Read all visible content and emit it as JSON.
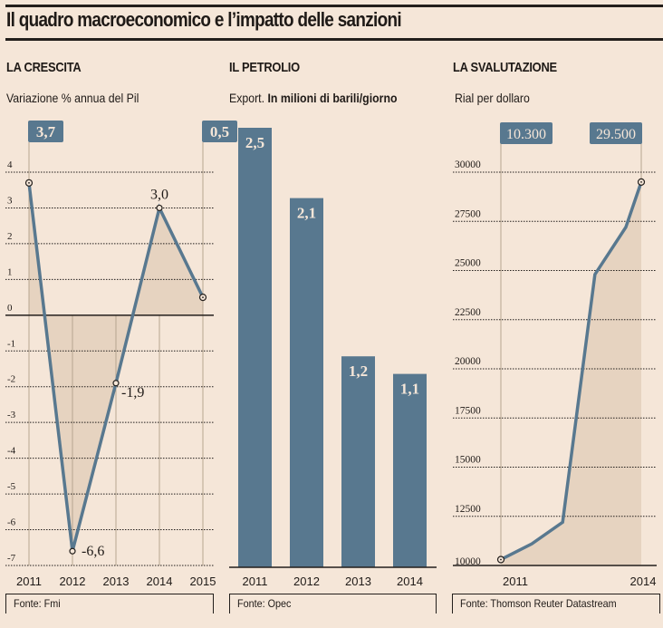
{
  "header": {
    "title": "Il quadro macroeconomico e l’impatto delle sanzioni"
  },
  "colors": {
    "background": "#f5e6d8",
    "line_bar": "#58788f",
    "area_fill": "#e6d3c0",
    "text": "#1f1a17",
    "label_box_text": "#f5e6d8"
  },
  "sections": {
    "crescita": {
      "title": "LA CRESCITA",
      "subtitle": "Variazione % annua del Pil",
      "source": "Fonte: Fmi"
    },
    "petrolio": {
      "title": "IL PETROLIO",
      "subtitle_plain": "Export.",
      "subtitle_bold": "In milioni di barili/giorno",
      "source": "Fonte: Opec"
    },
    "svalutazione": {
      "title": "LA SVALUTAZIONE",
      "subtitle": "Rial per dollaro",
      "source": "Fonte: Thomson Reuter Datastream"
    }
  },
  "chart_data": [
    {
      "type": "line",
      "title": "LA CRESCITA",
      "subtitle": "Variazione % annua del Pil",
      "categories": [
        "2011",
        "2012",
        "2013",
        "2014",
        "2015"
      ],
      "values": [
        3.7,
        -6.6,
        -1.9,
        3.0,
        0.5
      ],
      "data_labels": [
        "3,7",
        "-6,6",
        "-1,9",
        "3,0",
        "0,5"
      ],
      "boxed_labels": [
        {
          "index": 0,
          "text": "3,7"
        },
        {
          "index": 4,
          "text": "0,5"
        }
      ],
      "ylim": [
        -7,
        4
      ],
      "yticks": [
        4,
        3,
        2,
        1,
        0,
        -1,
        -2,
        -3,
        -4,
        -5,
        -6,
        -7
      ],
      "ytick_labels": [
        "4",
        "3",
        "2",
        "1",
        "0",
        "-1",
        "-2",
        "-3",
        "-4",
        "-5",
        "-6",
        "-7"
      ],
      "grid": true,
      "source": "Fonte: Fmi"
    },
    {
      "type": "bar",
      "title": "IL PETROLIO",
      "subtitle": "Export. In milioni di barili/giorno",
      "categories": [
        "2011",
        "2012",
        "2013",
        "2014"
      ],
      "values": [
        2.5,
        2.1,
        1.2,
        1.1
      ],
      "data_labels": [
        "2,5",
        "2,1",
        "1,2",
        "1,1"
      ],
      "ylim": [
        0,
        2.5
      ],
      "grid": false,
      "source": "Fonte: Opec"
    },
    {
      "type": "area",
      "title": "LA SVALUTAZIONE",
      "subtitle": "Rial per dollaro",
      "x": [
        0,
        0.22,
        0.44,
        0.67,
        0.89,
        1.0
      ],
      "x_range_labels": [
        "2011",
        "2014"
      ],
      "values": [
        10300,
        11100,
        12200,
        24800,
        27200,
        29500
      ],
      "boxed_labels": [
        {
          "index": 0,
          "text": "10.300"
        },
        {
          "index": 5,
          "text": "29.500"
        }
      ],
      "ylim": [
        10000,
        30000
      ],
      "yticks": [
        30000,
        27500,
        25000,
        22500,
        20000,
        17500,
        15000,
        12500,
        10000
      ],
      "ytick_labels": [
        "30000",
        "27500",
        "25000",
        "22500",
        "20000",
        "17500",
        "15000",
        "12500",
        "10000"
      ],
      "xtick_labels": [
        "2011",
        "2014"
      ],
      "grid": true,
      "source": "Fonte: Thomson Reuter Datastream"
    }
  ]
}
